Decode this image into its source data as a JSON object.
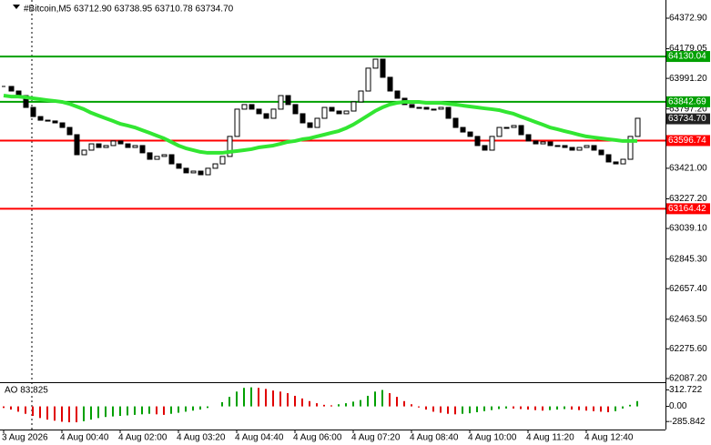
{
  "chart_data": {
    "type": "candlestick",
    "title": "#Bitcoin,M5 63712.90 63738.95 63710.78 63734.70",
    "categories": [
      "3 Aug 2026",
      null,
      null,
      null,
      null,
      null,
      null,
      null,
      "4 Aug 00:40",
      null,
      null,
      null,
      null,
      null,
      null,
      null,
      "4 Aug 02:00",
      null,
      null,
      null,
      null,
      null,
      null,
      null,
      "4 Aug 03:20",
      null,
      null,
      null,
      null,
      null,
      null,
      null,
      "4 Aug 04:40",
      null,
      null,
      null,
      null,
      null,
      null,
      null,
      "4 Aug 06:00",
      null,
      null,
      null,
      null,
      null,
      null,
      null,
      "4 Aug 07:20",
      null,
      null,
      null,
      null,
      null,
      null,
      null,
      "4 Aug 08:40",
      null,
      null,
      null,
      null,
      null,
      null,
      null,
      "4 Aug 10:00",
      null,
      null,
      null,
      null,
      null,
      null,
      null,
      "4 Aug 11:20",
      null,
      null,
      null,
      null,
      null,
      null,
      null,
      "4 Aug 12:40",
      null,
      null,
      null,
      null,
      null,
      null,
      null
    ],
    "close": [
      63940,
      63911,
      63882,
      63807,
      63749,
      63726,
      63721,
      63709,
      63680,
      63634,
      63507,
      63536,
      63576,
      63553,
      63565,
      63594,
      63576,
      63553,
      63565,
      63519,
      63478,
      63496,
      63507,
      63449,
      63421,
      63392,
      63403,
      63380,
      63421,
      63449,
      63496,
      63623,
      63796,
      63825,
      63796,
      63767,
      63738,
      63796,
      63882,
      63825,
      63767,
      63709,
      63680,
      63738,
      63807,
      63784,
      63767,
      63784,
      63842,
      63911,
      64056,
      64113,
      63998,
      63911,
      63865,
      63825,
      63807,
      63807,
      63796,
      63796,
      63807,
      63738,
      63680,
      63651,
      63623,
      63565,
      63536,
      63623,
      63680,
      63680,
      63692,
      63634,
      63594,
      63576,
      63588,
      63565,
      63565,
      63553,
      63536,
      63553,
      63565,
      63536,
      63507,
      63461,
      63449,
      63478,
      63623,
      63738
    ],
    "up_color": "#ffffff",
    "down_color": "#000000",
    "moving_average": {
      "color": "#32e632",
      "values": [
        63882,
        63876,
        63876,
        63871,
        63865,
        63859,
        63853,
        63848,
        63842,
        63830,
        63813,
        63796,
        63773,
        63755,
        63738,
        63721,
        63703,
        63692,
        63680,
        63663,
        63646,
        63628,
        63611,
        63588,
        63565,
        63548,
        63536,
        63525,
        63519,
        63519,
        63519,
        63525,
        63530,
        63536,
        63542,
        63553,
        63559,
        63565,
        63576,
        63588,
        63594,
        63605,
        63611,
        63623,
        63634,
        63646,
        63657,
        63675,
        63698,
        63726,
        63755,
        63784,
        63807,
        63825,
        63836,
        63842,
        63842,
        63842,
        63836,
        63836,
        63836,
        63830,
        63825,
        63819,
        63813,
        63807,
        63801,
        63796,
        63790,
        63778,
        63767,
        63749,
        63732,
        63715,
        63698,
        63680,
        63669,
        63657,
        63646,
        63634,
        63623,
        63617,
        63611,
        63605,
        63600,
        63594,
        63594,
        63594
      ]
    },
    "ylim": [
      62064,
      64488.3
    ],
    "yticks": [
      {
        "value": 64372.9,
        "label": "64372.90"
      },
      {
        "value": 64179.05,
        "label": "64179.05"
      },
      {
        "value": 63991.2,
        "label": "63991.20"
      },
      {
        "value": 63797.2,
        "label": "63797.20"
      },
      {
        "value": 63421.0,
        "label": "63421.00"
      },
      {
        "value": 63227.2,
        "label": "63227.20"
      },
      {
        "value": 63039.1,
        "label": "63039.10"
      },
      {
        "value": 62845.3,
        "label": "62845.30"
      },
      {
        "value": 62657.4,
        "label": "62657.40"
      },
      {
        "value": 62463.5,
        "label": "62463.50"
      },
      {
        "value": 62275.6,
        "label": "62275.60"
      },
      {
        "value": 62087.2,
        "label": "62087.20"
      }
    ],
    "levels": [
      {
        "value": 64130.04,
        "color": "#00a000"
      },
      {
        "value": 63842.69,
        "color": "#00a000"
      },
      {
        "value": 63596.74,
        "color": "#ff0000"
      },
      {
        "value": 63164.42,
        "color": "#ff0000"
      }
    ],
    "current_price": {
      "value": 63734.7,
      "label": "63734.70"
    },
    "ao": {
      "label": "AO 83.825",
      "up_color": "#00a000",
      "down_color": "#e00000",
      "values": [
        -30,
        -60,
        -100,
        -140,
        -180,
        -220,
        -250,
        -270,
        -290,
        -300,
        -300,
        -280,
        -250,
        -220,
        -200,
        -190,
        -180,
        -170,
        -160,
        -150,
        -140,
        -150,
        -160,
        -140,
        -120,
        -100,
        -80,
        -60,
        -30,
        0,
        80,
        180,
        280,
        350,
        360,
        350,
        330,
        300,
        280,
        250,
        200,
        150,
        100,
        60,
        30,
        20,
        40,
        60,
        90,
        120,
        200,
        280,
        310,
        250,
        180,
        100,
        40,
        -20,
        -60,
        -100,
        -120,
        -140,
        -150,
        -140,
        -130,
        -110,
        -90,
        -70,
        -50,
        -40,
        -40,
        -50,
        -60,
        -70,
        -80,
        -70,
        -60,
        -50,
        -60,
        -70,
        -80,
        -90,
        -100,
        -110,
        -90,
        -40,
        30,
        100
      ],
      "ylim": [
        -420,
        440
      ],
      "yticks": [
        {
          "value": 312.722,
          "label": "312.722"
        },
        {
          "value": 0,
          "label": "0.00"
        },
        {
          "value": -285.842,
          "label": "-285.842"
        }
      ]
    }
  }
}
